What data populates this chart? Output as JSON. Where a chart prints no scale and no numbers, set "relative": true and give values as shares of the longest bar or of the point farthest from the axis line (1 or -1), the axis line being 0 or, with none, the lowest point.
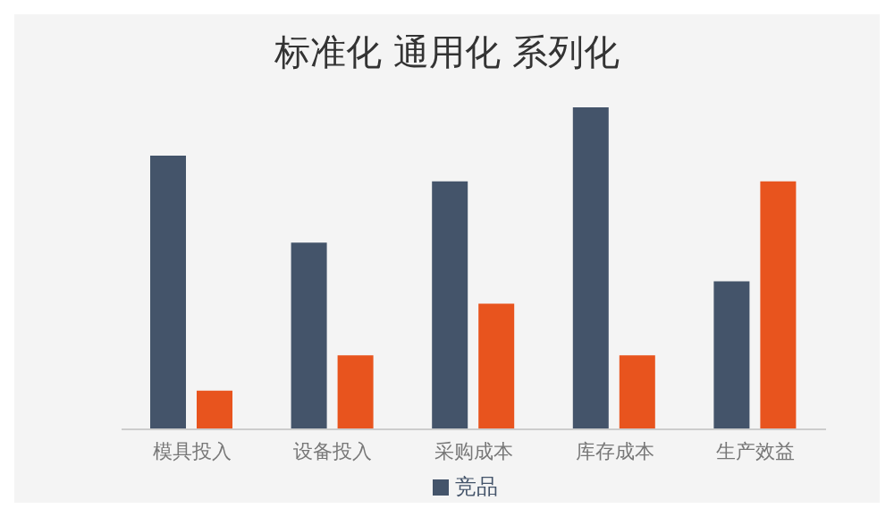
{
  "chart_data": {
    "type": "bar",
    "title": "标准化  通用化  系列化",
    "categories": [
      "模具投入",
      "设备投入",
      "采购成本",
      "库存成本",
      "生产效益"
    ],
    "relative": true,
    "legend": "bottom",
    "series": [
      {
        "name": "竞品",
        "color": "#44546a",
        "values": [
          0.85,
          0.58,
          0.77,
          1,
          0.46
        ]
      },
      {
        "color": "#e8541e",
        "values": [
          0.12,
          0.23,
          0.39,
          0.23,
          0.77
        ]
      }
    ]
  }
}
